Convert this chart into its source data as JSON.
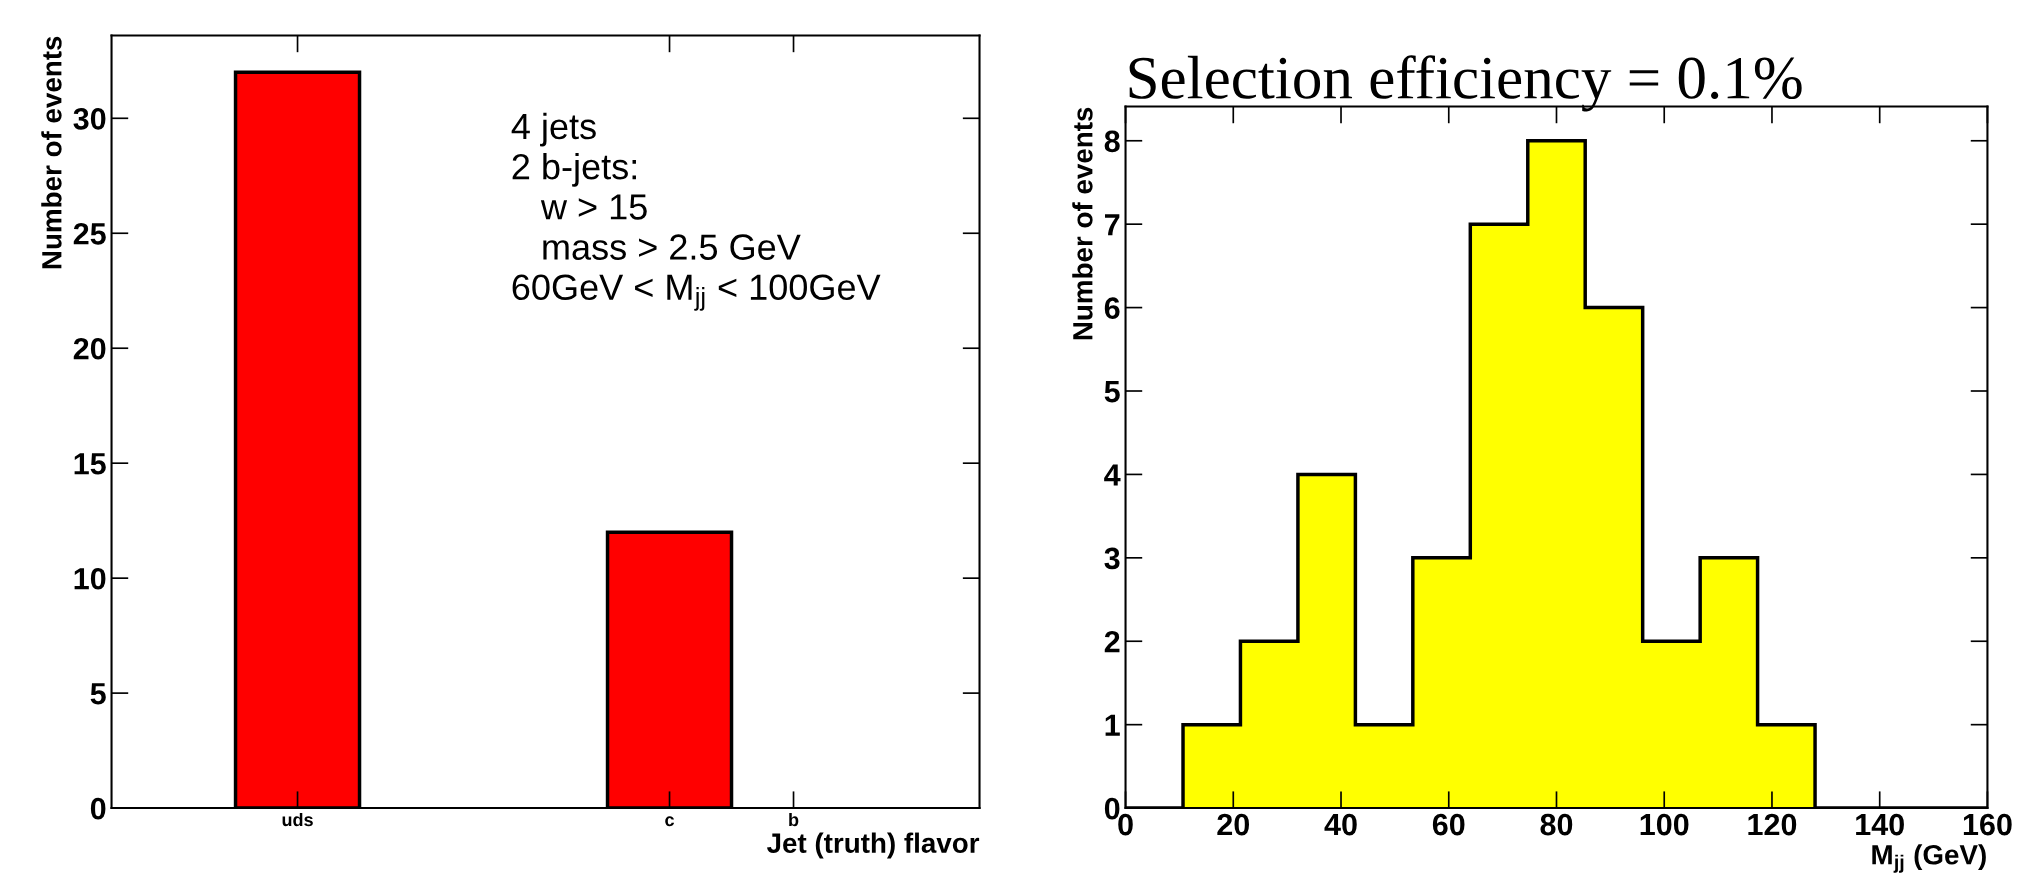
{
  "chart_data": [
    {
      "type": "bar",
      "categories": [
        null,
        "uds",
        null,
        null,
        "c",
        "b",
        null
      ],
      "values": [
        0,
        32,
        0,
        0,
        12,
        0,
        0
      ],
      "color": "#ff0000",
      "ylabel": "Number of events",
      "xlabel": "Jet (truth) flavor",
      "ylim": [
        0,
        33.6
      ],
      "yticks": [
        0,
        5,
        10,
        15,
        20,
        25,
        30
      ],
      "annotations": [
        "4 jets\n2 b-jets:\n   w > 15\n   mass > 2.5 GeV\n60GeV < M$_{jj}$ < 100GeV"
      ]
    },
    {
      "type": "histogram",
      "title": "Selection efficiency = 0.1%",
      "bins": [
        0,
        10.67,
        21.33,
        32,
        42.67,
        53.33,
        64,
        74.67,
        85.33,
        96,
        106.67,
        117.33,
        128,
        138.67,
        149.33,
        160
      ],
      "values": [
        0,
        1,
        2,
        4,
        1,
        3,
        7,
        8,
        6,
        2,
        3,
        1,
        0,
        0,
        0
      ],
      "color": "#ffff00",
      "ylabel": "Number of events",
      "xlabel": "M$_{jj}$ (GeV)",
      "xlim": [
        0,
        160
      ],
      "xticks": [
        0,
        20,
        40,
        60,
        80,
        100,
        120,
        140,
        160
      ],
      "ylim": [
        0,
        8.41
      ],
      "yticks": [
        0,
        1,
        2,
        3,
        4,
        5,
        6,
        7,
        8
      ]
    }
  ]
}
